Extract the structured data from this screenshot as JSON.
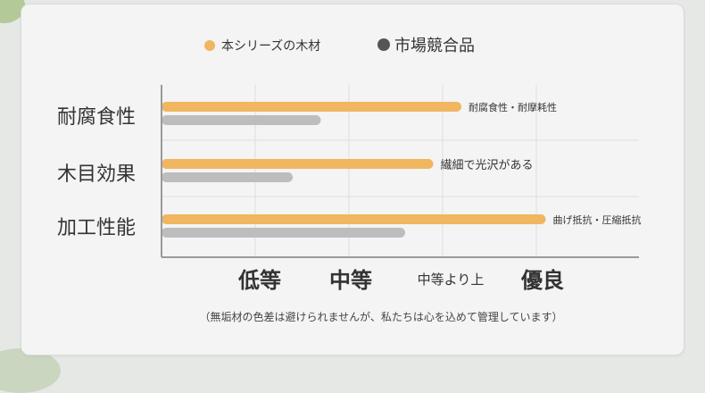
{
  "chart_data": {
    "type": "bar",
    "orientation": "horizontal",
    "categories": [
      "耐腐食性",
      "木目効果",
      "加工性能"
    ],
    "series": [
      {
        "name": "本シリーズの木材",
        "color": "#f0b660",
        "values": [
          3.2,
          2.9,
          4.1
        ]
      },
      {
        "name": "市場競合品",
        "color": "#bdbdbd",
        "values": [
          1.7,
          1.4,
          2.6
        ]
      }
    ],
    "x_ticks": [
      {
        "value": 1,
        "label": "低等"
      },
      {
        "value": 2,
        "label": "中等"
      },
      {
        "value": 3,
        "label": "中等より上"
      },
      {
        "value": 4,
        "label": "優良"
      }
    ],
    "xlim": [
      0,
      5
    ],
    "annotations": [
      "耐腐食性・耐摩耗性",
      "繊細で光沢がある",
      "曲げ抵抗・圧縮抵抗"
    ],
    "grid": true,
    "legend_position": "top",
    "footnote": "（無垢材の色差は避けられませんが、私たちは心を込めて管理しています）"
  }
}
